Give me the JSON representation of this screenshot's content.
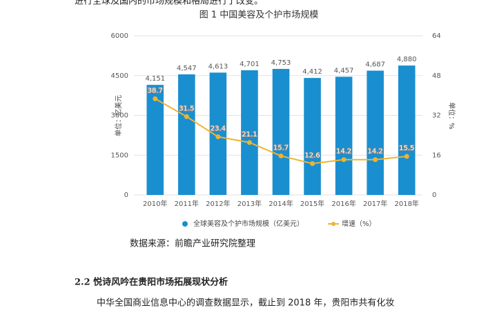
{
  "document": {
    "top_line": "进行全球及国内的市场规模和格局进行了改变。",
    "source": "数据来源：前瞻产业研究院整理",
    "heading": "2.2 悦诗风吟在贵阳市场拓展现状分析",
    "paragraph": "中华全国商业信息中心的调查数据显示，截止到 2018 年，贵阳市共有化妆"
  },
  "chart_data": {
    "type": "bar",
    "title": "图 1  中国美容及个护市场规模",
    "y_label": "单位：亿美元",
    "y2_label": "单位：%",
    "categories": [
      "2010年",
      "2011年",
      "2012年",
      "2013年",
      "2014年",
      "2015年",
      "2016年",
      "2017年",
      "2018年"
    ],
    "series": [
      {
        "name": "全球美容及个护市场规模（亿美元）",
        "color": "#1a8fd0",
        "type": "bar",
        "values": [
          4151,
          4547,
          4613,
          4701,
          4753,
          4412,
          4457,
          4687,
          4880
        ],
        "value_labels": [
          "4,151",
          "4,547",
          "4,613",
          "4,701",
          "4,753",
          "4,412",
          "4,457",
          "4,687",
          "4,880"
        ]
      },
      {
        "name": "增速（%）",
        "color": "#f0b330",
        "type": "line",
        "axis": "y2",
        "values": [
          38.7,
          31.5,
          23.4,
          21.1,
          15.7,
          12.6,
          14.2,
          14.2,
          15.5
        ]
      }
    ],
    "ylim": [
      0,
      6000
    ],
    "yticks": [
      0,
      1500,
      3000,
      4500,
      6000
    ],
    "y2lim": [
      0,
      64
    ],
    "y2ticks": [
      0,
      16,
      32,
      48,
      64
    ],
    "grid": true
  }
}
